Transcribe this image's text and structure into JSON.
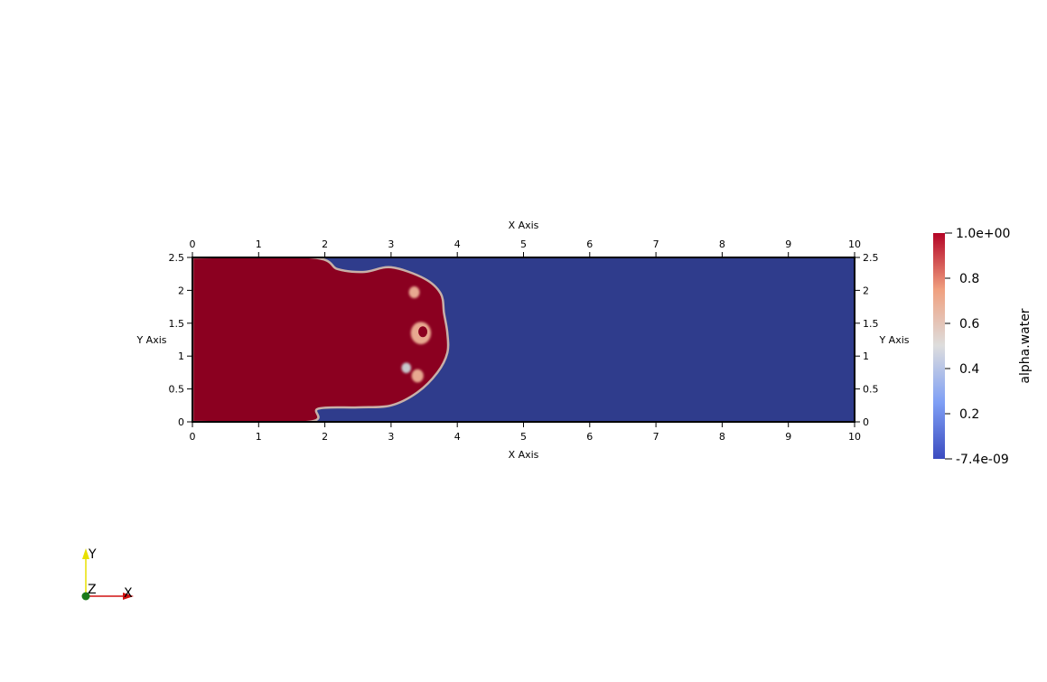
{
  "chart_data": {
    "type": "heatmap",
    "x_axis_title": "X Axis",
    "y_axis_title": "Y Axis",
    "xlim": [
      0,
      10
    ],
    "ylim": [
      0,
      2.5
    ],
    "x_ticks": [
      "0",
      "1",
      "2",
      "3",
      "4",
      "5",
      "6",
      "7",
      "8",
      "9",
      "10"
    ],
    "y_ticks": [
      "0",
      "0.5",
      "1",
      "1.5",
      "2",
      "2.5"
    ],
    "background_color": "#2f3c8c",
    "field_name": "alpha.water",
    "colorbar": {
      "title": "alpha.water",
      "max_label": "1.0e+00",
      "min_label": "-7.4e-09",
      "tick_labels": [
        "0.8",
        "0.6",
        "0.4",
        "0.2"
      ],
      "colors": [
        "#3b4cc0",
        "#7f9ff5",
        "#dddddd",
        "#f0a07f",
        "#b40426"
      ]
    },
    "water_region": {
      "value": 1.0,
      "color": "#8b0020",
      "outline": [
        [
          0,
          0
        ],
        [
          1.75,
          0
        ],
        [
          1.9,
          0.2
        ],
        [
          2.5,
          0.22
        ],
        [
          3.0,
          0.25
        ],
        [
          3.4,
          0.45
        ],
        [
          3.7,
          0.75
        ],
        [
          3.85,
          1.05
        ],
        [
          3.85,
          1.35
        ],
        [
          3.8,
          1.65
        ],
        [
          3.75,
          1.95
        ],
        [
          3.5,
          2.18
        ],
        [
          3.0,
          2.35
        ],
        [
          2.6,
          2.28
        ],
        [
          2.2,
          2.32
        ],
        [
          1.8,
          2.5
        ],
        [
          0,
          2.5
        ]
      ]
    },
    "bubbles": [
      {
        "x": 3.35,
        "y": 1.97,
        "r": 0.09,
        "value": 0.7
      },
      {
        "x": 3.45,
        "y": 1.35,
        "r": 0.17,
        "value": 0.7
      },
      {
        "x": 3.23,
        "y": 0.82,
        "r": 0.08,
        "value": 0.5
      },
      {
        "x": 3.4,
        "y": 0.7,
        "r": 0.1,
        "value": 0.7
      }
    ]
  },
  "orientation": {
    "x_label": "X",
    "y_label": "Y",
    "z_label": "Z"
  }
}
